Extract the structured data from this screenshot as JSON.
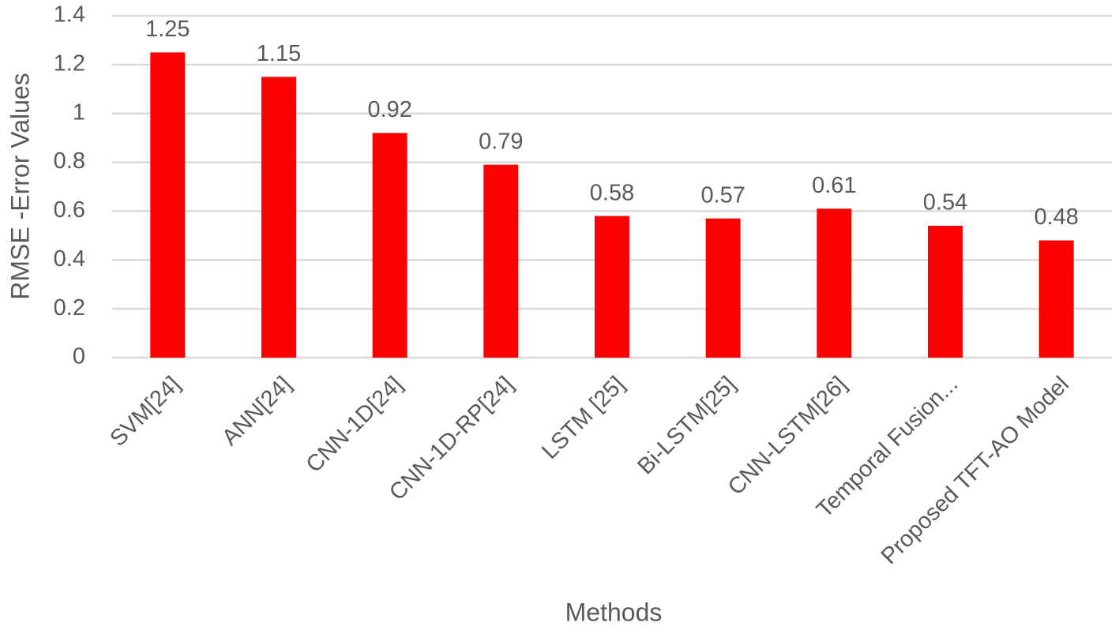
{
  "chart_data": {
    "type": "bar",
    "categories": [
      "SVM[24]",
      "ANN[24]",
      "CNN-1D[24]",
      "CNN-1D-RP[24]",
      "LSTM [25]",
      "Bi-LSTM[25]",
      "CNN-LSTM[26]",
      "Temporal Fusion...",
      "Proposed TFT-AO Model"
    ],
    "values": [
      1.25,
      1.15,
      0.92,
      0.79,
      0.58,
      0.57,
      0.61,
      0.54,
      0.48
    ],
    "color": "#ff0000",
    "x_label": "Methods",
    "y_label": "RMSE -Error Values",
    "ylim": [
      0,
      1.4
    ],
    "yticks": [
      0,
      0.2,
      0.4,
      0.6,
      0.8,
      1,
      1.2,
      1.4
    ],
    "grid": true
  }
}
